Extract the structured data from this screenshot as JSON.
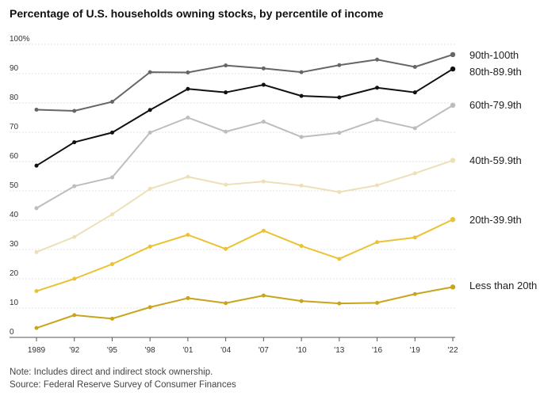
{
  "header": {
    "title": "Percentage of U.S. households owning stocks, by percentile of income"
  },
  "footer": {
    "note": "Note: Includes direct and indirect stock ownership.",
    "source": "Source: Federal Reserve Survey of Consumer Finances"
  },
  "chart_data": {
    "type": "line",
    "title": "Percentage of U.S. households owning stocks, by percentile of income",
    "x": [
      "1989",
      "'92",
      "'95",
      "'98",
      "'01",
      "'04",
      "'07",
      "'10",
      "'13",
      "'16",
      "'19",
      "'22"
    ],
    "ylim": [
      0,
      100
    ],
    "yticks": [
      "0",
      "10",
      "20",
      "30",
      "40",
      "50",
      "60",
      "70",
      "80",
      "90",
      "100%"
    ],
    "grid": true,
    "legend": "inline-right",
    "series": [
      {
        "name": "90th-100th",
        "color": "#666666",
        "values": [
          77.7,
          77.3,
          80.4,
          90.5,
          90.4,
          92.8,
          91.8,
          90.5,
          92.9,
          94.8,
          92.3,
          96.5
        ]
      },
      {
        "name": "80th-89.9th",
        "color": "#111111",
        "values": [
          58.6,
          66.6,
          69.9,
          77.6,
          84.8,
          83.6,
          86.2,
          82.4,
          81.9,
          85.2,
          83.6,
          91.6
        ]
      },
      {
        "name": "60th-79.9th",
        "color": "#bdbdbd",
        "values": [
          44.1,
          51.6,
          54.6,
          69.9,
          75.0,
          70.2,
          73.6,
          68.4,
          69.8,
          74.3,
          71.4,
          79.2
        ]
      },
      {
        "name": "40th-59.9th",
        "color": "#ede0b8",
        "values": [
          29.1,
          34.3,
          42.0,
          50.7,
          54.8,
          52.1,
          53.2,
          51.8,
          49.6,
          51.9,
          56.0,
          60.4
        ]
      },
      {
        "name": "20th-39.9th",
        "color": "#ebc231",
        "values": [
          15.8,
          20.0,
          25.0,
          31.0,
          35.0,
          30.2,
          36.4,
          31.2,
          26.8,
          32.5,
          34.1,
          40.2
        ]
      },
      {
        "name": "Less than 20th",
        "color": "#c8a51b",
        "values": [
          3.2,
          7.6,
          6.4,
          10.3,
          13.4,
          11.7,
          14.3,
          12.4,
          11.6,
          11.8,
          14.8,
          17.2
        ]
      }
    ]
  }
}
